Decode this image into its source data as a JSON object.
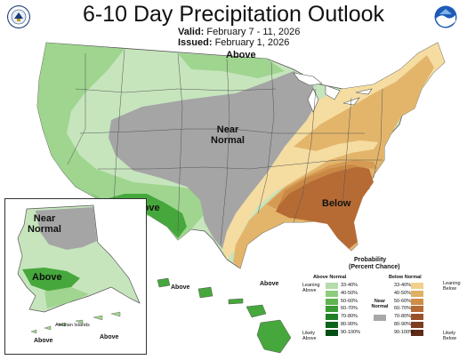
{
  "title": "6-10 Day Precipitation Outlook",
  "valid_label": "Valid:",
  "valid_value": "February 7 - 11, 2026",
  "issued_label": "Issued:",
  "issued_value": "February 1, 2026",
  "regions": {
    "conus_above": "Above",
    "conus_near": "Near Normal",
    "conus_above_sw": "Above",
    "conus_below": "Below",
    "alaska_near": "Near Normal",
    "alaska_above": "Above",
    "aleutian_title": "Aleutian Islands",
    "aleutian_above_1": "Above",
    "aleutian_above_2": "Above",
    "hawaii_above_1": "Above",
    "hawaii_above_2": "Above"
  },
  "legend": {
    "title_line1": "Probability",
    "title_line2": "(Percent Chance)",
    "above_header": "Above Normal",
    "below_header": "Below Normal",
    "near_header": "Near Normal",
    "leaning_above": "Leaning Above",
    "likely_above": "Likely Above",
    "leaning_below": "Leaning Below",
    "likely_below": "Likely Below",
    "ranges": [
      "33-40%",
      "40-50%",
      "50-60%",
      "60-70%",
      "70-80%",
      "80-90%",
      "90-100%"
    ],
    "above_colors": [
      "#b5dcaa",
      "#8ccc7d",
      "#5fb450",
      "#3a9a33",
      "#207f27",
      "#0b651d",
      "#034e14"
    ],
    "below_colors": [
      "#f2d08c",
      "#e0b064",
      "#cf8d46",
      "#b66b35",
      "#99512a",
      "#7d3d21",
      "#5e2b17"
    ],
    "near_color": "#a8a8a8"
  },
  "map_colors": {
    "land_above_light": "#c6e5bd",
    "land_above": "#9fd58f",
    "land_above_mid": "#76c165",
    "land_above_strong": "#46a83c",
    "near": "#a5a5a5",
    "below_light": "#f5dca0",
    "below": "#e3b56b",
    "below_mid": "#d0924b",
    "below_strong": "#b66b35",
    "water": "#ffffff",
    "border": "#555555"
  },
  "logos": {
    "left": "noaa-commerce-seal-icon",
    "right": "noaa-logo-icon"
  }
}
